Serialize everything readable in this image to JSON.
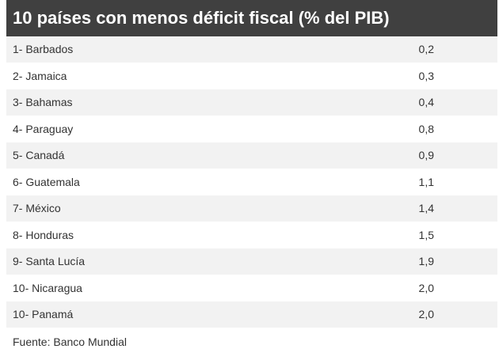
{
  "title": "10 países con menos déficit fiscal (% del PIB)",
  "chart_data": {
    "type": "table",
    "title": "10 países con menos déficit fiscal (% del PIB)",
    "rows": [
      {
        "label": "1- Barbados",
        "value": "0,2"
      },
      {
        "label": "2- Jamaica",
        "value": "0,3"
      },
      {
        "label": "3- Bahamas",
        "value": "0,4"
      },
      {
        "label": "4- Paraguay",
        "value": "0,8"
      },
      {
        "label": "5- Canadá",
        "value": "0,9"
      },
      {
        "label": "6- Guatemala",
        "value": "1,1"
      },
      {
        "label": "7- México",
        "value": "1,4"
      },
      {
        "label": "8- Honduras",
        "value": "1,5"
      },
      {
        "label": "9- Santa Lucía",
        "value": "1,9"
      },
      {
        "label": "10- Nicaragua",
        "value": "2,0"
      },
      {
        "label": "10- Panamá",
        "value": "2,0"
      }
    ]
  },
  "footer": "Fuente: Banco Mundial",
  "colors": {
    "title_bg": "#404040",
    "stripe": "#f2f2f2"
  }
}
